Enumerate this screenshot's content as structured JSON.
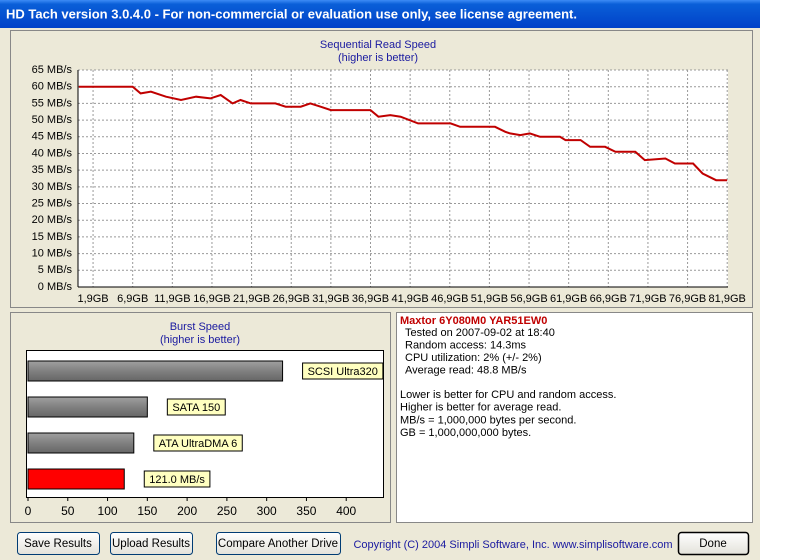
{
  "window": {
    "title": "HD Tach version 3.0.4.0  - For non-commercial or evaluation use only, see license agreement."
  },
  "read_chart": {
    "type": "line",
    "title": "Sequential Read Speed",
    "subtitle": "(higher is better)",
    "x": [
      0.1,
      6.9,
      7.9,
      9.2,
      11.1,
      13,
      14.9,
      16.7,
      18,
      19.5,
      20.5,
      21.8,
      24.9,
      26.2,
      28.1,
      29.3,
      30.6,
      31.9,
      36.9,
      37.9,
      39.4,
      40.7,
      42.9,
      47,
      48.2,
      52.6,
      53.9,
      54.5,
      55.8,
      57,
      58.3,
      60.8,
      61.5,
      63.4,
      64.6,
      66.5,
      67.8,
      70.3,
      71.5,
      74.1,
      75.3,
      77.6,
      78.8,
      80.5,
      81.9
    ],
    "values": [
      60,
      60,
      58,
      58.5,
      57,
      56,
      57,
      56.5,
      57.5,
      55,
      56,
      55,
      55,
      54,
      54,
      55,
      54,
      53,
      53,
      51,
      51.5,
      51,
      49,
      49,
      48,
      48,
      46.5,
      46,
      45.5,
      46,
      45,
      45,
      44,
      44,
      42,
      42,
      40.5,
      40.5,
      38,
      38.5,
      37,
      37,
      34,
      32,
      32
    ],
    "color": "#c00000",
    "xlim": [
      0,
      82
    ],
    "ylim": [
      0,
      65
    ],
    "grid": true,
    "xticks": [
      {
        "value": 1.9,
        "label": "1,9GB"
      },
      {
        "value": 6.9,
        "label": "6,9GB"
      },
      {
        "value": 11.9,
        "label": "11,9GB"
      },
      {
        "value": 16.9,
        "label": "16,9GB"
      },
      {
        "value": 21.9,
        "label": "21,9GB"
      },
      {
        "value": 26.9,
        "label": "26,9GB"
      },
      {
        "value": 31.9,
        "label": "31,9GB"
      },
      {
        "value": 36.9,
        "label": "36,9GB"
      },
      {
        "value": 41.9,
        "label": "41,9GB"
      },
      {
        "value": 46.9,
        "label": "46,9GB"
      },
      {
        "value": 51.9,
        "label": "51,9GB"
      },
      {
        "value": 56.9,
        "label": "56,9GB"
      },
      {
        "value": 61.9,
        "label": "61,9GB"
      },
      {
        "value": 66.9,
        "label": "66,9GB"
      },
      {
        "value": 71.9,
        "label": "71,9GB"
      },
      {
        "value": 76.9,
        "label": "76,9GB"
      },
      {
        "value": 81.9,
        "label": "81,9GB"
      }
    ],
    "yticks": [
      {
        "value": 0,
        "label": "0 MB/s"
      },
      {
        "value": 5,
        "label": "5 MB/s"
      },
      {
        "value": 10,
        "label": "10 MB/s"
      },
      {
        "value": 15,
        "label": "15 MB/s"
      },
      {
        "value": 20,
        "label": "20 MB/s"
      },
      {
        "value": 25,
        "label": "25 MB/s"
      },
      {
        "value": 30,
        "label": "30 MB/s"
      },
      {
        "value": 35,
        "label": "35 MB/s"
      },
      {
        "value": 40,
        "label": "40 MB/s"
      },
      {
        "value": 45,
        "label": "45 MB/s"
      },
      {
        "value": 50,
        "label": "50 MB/s"
      },
      {
        "value": 55,
        "label": "55 MB/s"
      },
      {
        "value": 60,
        "label": "60 MB/s"
      },
      {
        "value": 65,
        "label": "65 MB/s"
      }
    ]
  },
  "burst_chart": {
    "type": "bar",
    "title": "Burst Speed",
    "subtitle": "(higher is better)",
    "values": [
      320,
      150,
      133,
      121
    ],
    "bar_labels": [
      "SCSI Ultra320",
      "SATA 150",
      "ATA UltraDMA 6",
      "121.0 MB/s"
    ],
    "colors": [
      "#808080",
      "#808080",
      "#808080",
      "#ff0000"
    ],
    "xlim": [
      0,
      450
    ],
    "xticks": [
      0,
      50,
      100,
      150,
      200,
      250,
      300,
      350,
      400
    ]
  },
  "info": {
    "drive": "Maxtor 6Y080M0 YAR51EW0",
    "details": [
      "Tested on 2007-09-02 at 18:40",
      "Random access: 14.3ms",
      "CPU utilization: 2% (+/- 2%)",
      "Average read: 48.8 MB/s"
    ],
    "notes": [
      "Lower is better for CPU and random access.",
      "Higher is better for average read.",
      "MB/s = 1,000,000 bytes per second.",
      "GB = 1,000,000,000 bytes."
    ]
  },
  "buttons": [
    "Save Results",
    "Upload Results",
    "Compare Another Drive"
  ],
  "copyright": "Copyright (C) 2004 Simpli Software, Inc. www.simplisoftware.com",
  "done_button": "Done"
}
